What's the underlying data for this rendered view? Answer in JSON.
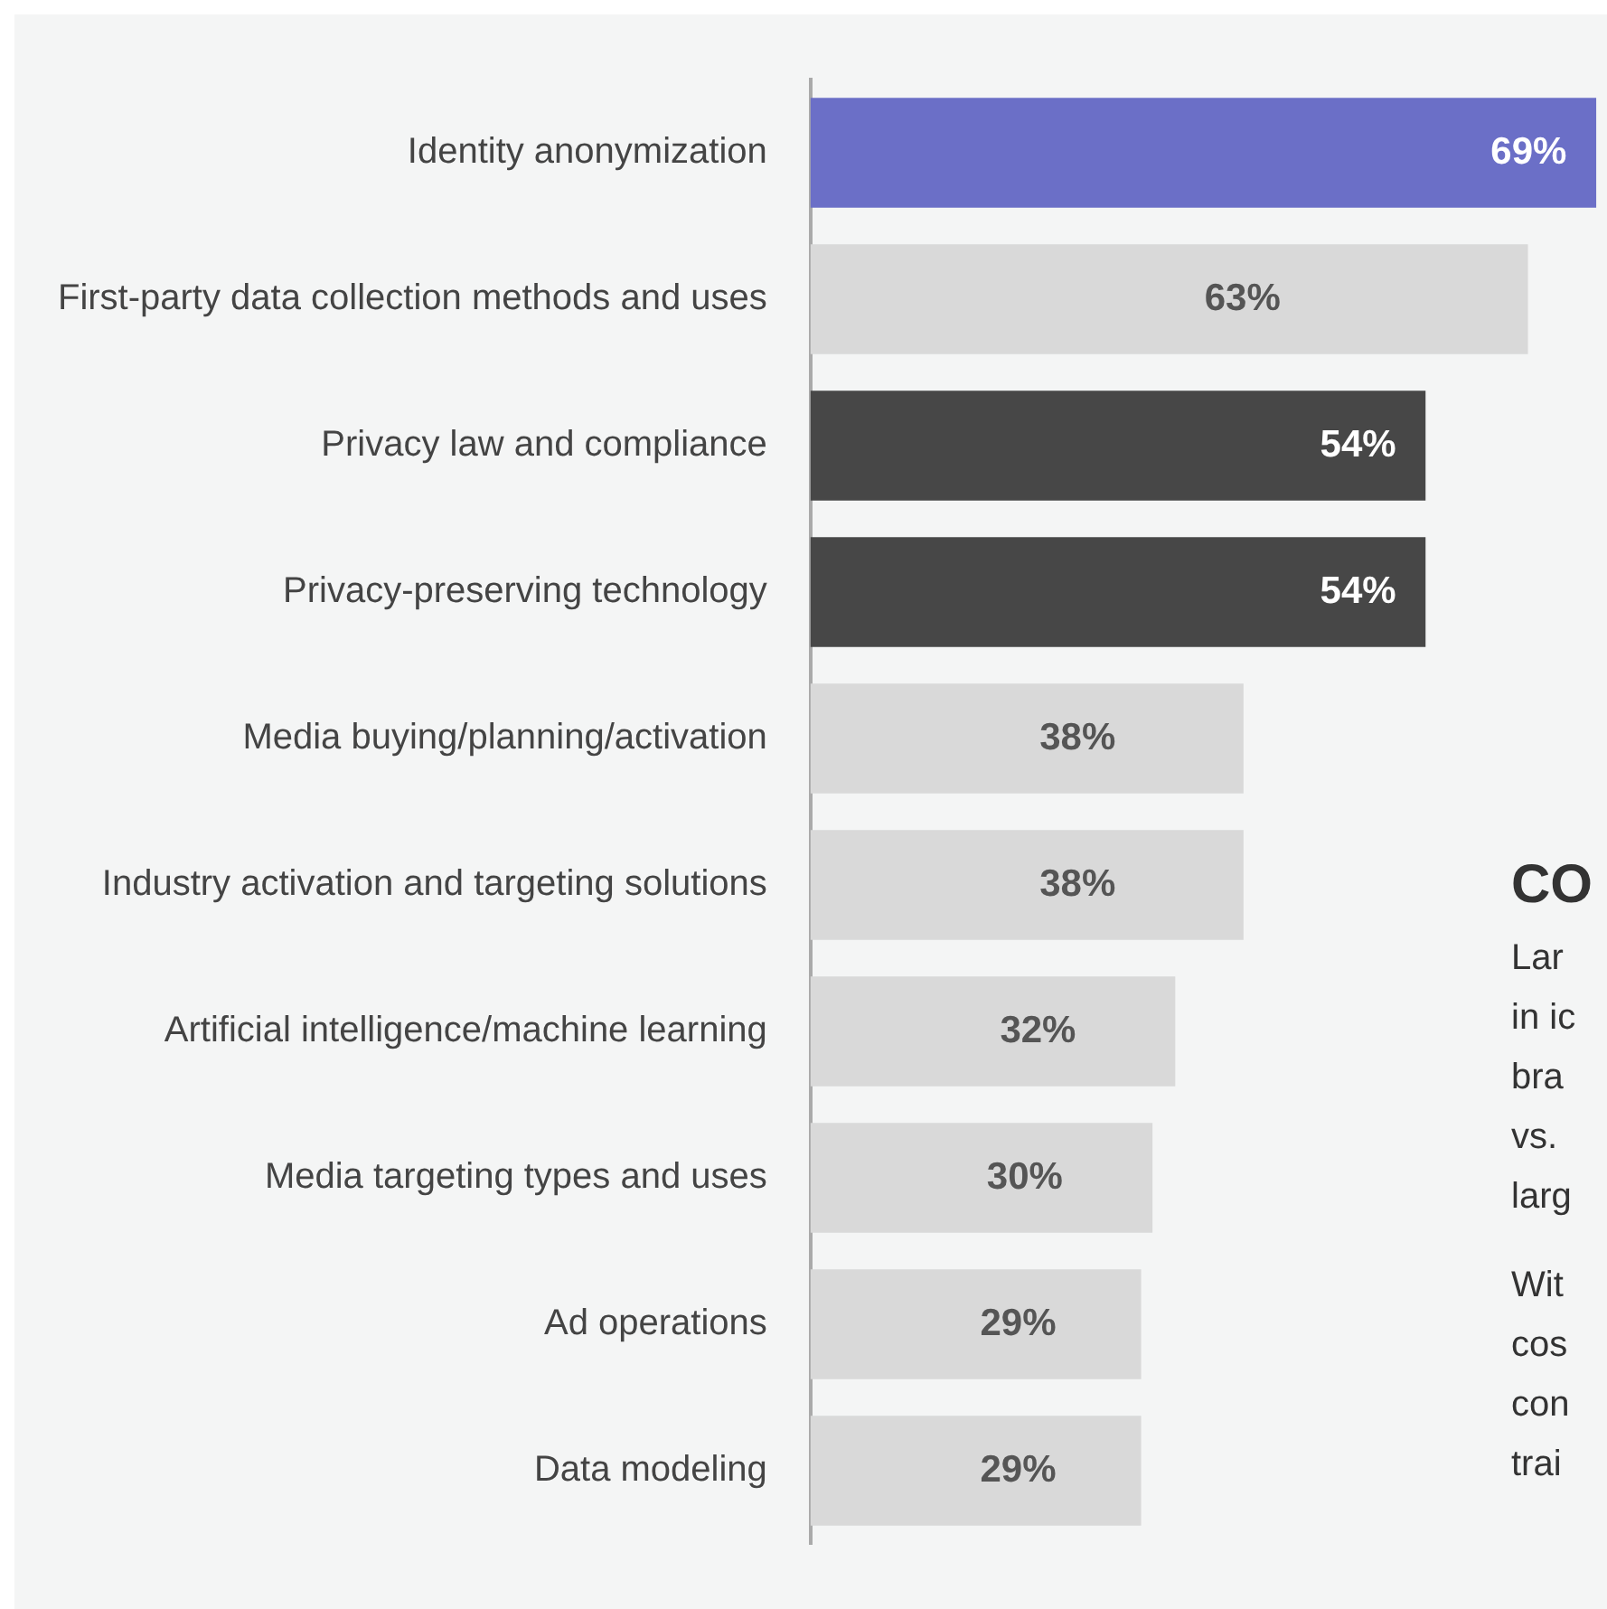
{
  "chart_data": {
    "type": "bar",
    "orientation": "horizontal",
    "categories": [
      "Identity anonymization",
      "First-party data collection methods and uses",
      "Privacy law and compliance",
      "Privacy-preserving technology",
      "Media buying/planning/activation",
      "Industry activation and targeting solutions",
      "Artificial intelligence/machine learning",
      "Media targeting types and uses",
      "Ad operations",
      "Data modeling"
    ],
    "values": [
      69,
      63,
      54,
      54,
      38,
      38,
      32,
      30,
      29,
      29
    ],
    "colors": [
      "#6b6fc7",
      "#d9d9d9",
      "#474747",
      "#474747",
      "#d9d9d9",
      "#d9d9d9",
      "#d9d9d9",
      "#d9d9d9",
      "#d9d9d9",
      "#d9d9d9"
    ],
    "value_labels": [
      "69%",
      "63%",
      "54%",
      "54%",
      "38%",
      "38%",
      "32%",
      "30%",
      "29%",
      "29%"
    ],
    "annotations": [
      "CO",
      "Lar",
      "in ic",
      "bra",
      "vs.",
      "larg",
      "Wit",
      "cos",
      "con",
      "trai"
    ],
    "grid": false,
    "tick_labels": "y"
  }
}
